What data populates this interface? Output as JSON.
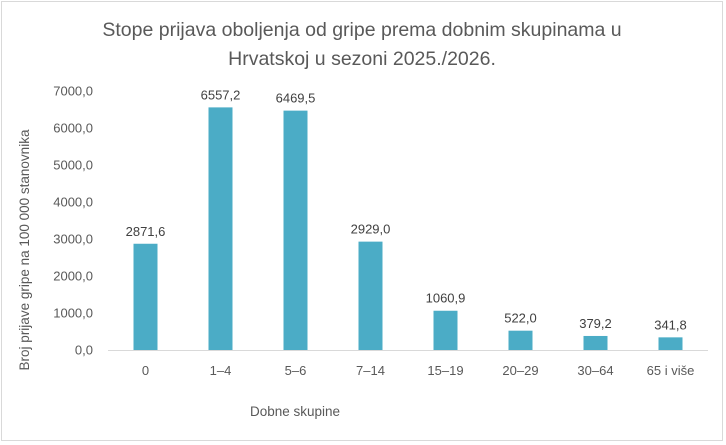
{
  "chart_data": {
    "type": "bar",
    "title": "Stope prijava oboljenja od gripe prema dobnim skupinama u Hrvatskoj u sezoni 2025./2026.",
    "xlabel": "Dobne skupine",
    "ylabel": "Broj prijave gripe na 100 000 stanovnika",
    "categories": [
      "0",
      "1–4",
      "5–6",
      "7–14",
      "15–19",
      "20–29",
      "30–64",
      "65 i više"
    ],
    "values": [
      2871.6,
      6557.2,
      6469.5,
      2929.0,
      1060.9,
      522.0,
      379.2,
      341.8
    ],
    "value_labels": [
      "2871,6",
      "6557,2",
      "6469,5",
      "2929,0",
      "1060,9",
      "522,0",
      "379,2",
      "341,8"
    ],
    "y_ticks": [
      "0,0",
      "1000,0",
      "2000,0",
      "3000,0",
      "4000,0",
      "5000,0",
      "6000,0",
      "7000,0"
    ],
    "ylim": [
      0,
      7000
    ],
    "grid": false,
    "legend": "none",
    "bar_color": "#4bacc6"
  }
}
